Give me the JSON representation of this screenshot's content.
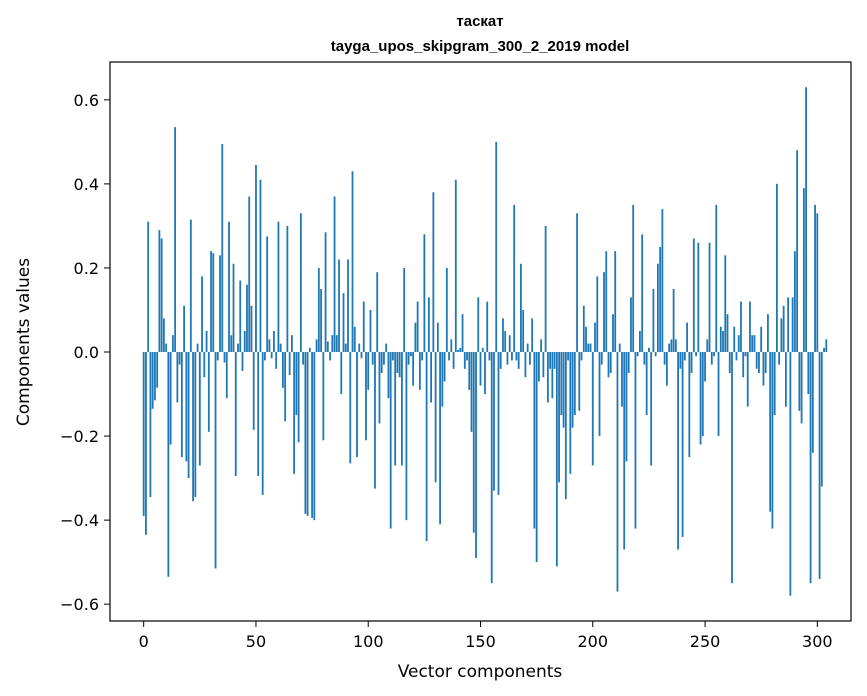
{
  "chart_data": {
    "type": "bar",
    "title": "таскат",
    "subtitle": "tayga_upos_skipgram_300_2_2019 model",
    "xlabel": "Vector components",
    "ylabel": "Components values",
    "xlim": [
      -15,
      315
    ],
    "ylim": [
      -0.64,
      0.69
    ],
    "xticks": [
      0,
      50,
      100,
      150,
      200,
      250,
      300
    ],
    "yticks": [
      -0.6,
      -0.4,
      -0.2,
      0.0,
      0.2,
      0.4,
      0.6
    ],
    "xtick_labels": [
      "0",
      "50",
      "100",
      "150",
      "200",
      "250",
      "300"
    ],
    "ytick_labels": [
      "−0.6",
      "−0.4",
      "−0.2",
      "0.0",
      "0.2",
      "0.4",
      "0.6"
    ],
    "bar_color": "#1f77b4",
    "grid": false,
    "x_start": 0,
    "values": [
      -0.39,
      -0.435,
      0.31,
      -0.345,
      -0.135,
      -0.115,
      -0.085,
      0.29,
      0.27,
      0.08,
      0.02,
      -0.535,
      -0.22,
      0.04,
      0.535,
      -0.12,
      -0.03,
      -0.25,
      0.11,
      -0.26,
      -0.3,
      0.315,
      -0.355,
      -0.345,
      0.02,
      -0.27,
      0.18,
      -0.06,
      0.05,
      -0.19,
      0.24,
      0.235,
      -0.515,
      -0.02,
      0.23,
      0.495,
      -0.025,
      -0.11,
      0.31,
      0.04,
      0.21,
      -0.295,
      0.02,
      0.17,
      -0.045,
      0.05,
      0.16,
      0.37,
      0.11,
      -0.185,
      0.445,
      -0.295,
      0.41,
      -0.34,
      -0.02,
      0.275,
      0.03,
      -0.015,
      0.05,
      -0.04,
      0.31,
      0.02,
      -0.085,
      -0.165,
      0.3,
      -0.055,
      0.04,
      -0.29,
      -0.15,
      -0.215,
      0.33,
      -0.03,
      -0.385,
      -0.39,
      0.01,
      -0.395,
      -0.4,
      0.03,
      0.2,
      0.15,
      -0.21,
      0.285,
      0.025,
      -0.02,
      0.04,
      0.37,
      0.04,
      0.22,
      -0.1,
      0.14,
      0.02,
      0.22,
      -0.265,
      0.43,
      0.06,
      -0.25,
      0.02,
      -0.015,
      0.12,
      -0.21,
      -0.09,
      0.1,
      -0.03,
      -0.325,
      0.19,
      -0.17,
      -0.05,
      -0.03,
      0.02,
      -0.11,
      -0.42,
      -0.02,
      -0.27,
      -0.05,
      -0.06,
      -0.27,
      0.2,
      -0.4,
      -0.03,
      -0.01,
      -0.08,
      0.07,
      0.12,
      -0.09,
      -0.02,
      0.28,
      -0.45,
      0.13,
      -0.12,
      0.38,
      -0.31,
      0.07,
      -0.41,
      -0.13,
      -0.07,
      0.2,
      -0.02,
      0.03,
      -0.04,
      0.41,
      0.005,
      0.01,
      0.09,
      -0.04,
      -0.02,
      -0.09,
      -0.19,
      -0.43,
      -0.49,
      0.13,
      -0.08,
      0.01,
      -0.1,
      0.12,
      -0.02,
      -0.55,
      -0.33,
      0.5,
      -0.34,
      -0.04,
      0.08,
      0.05,
      -0.03,
      0.04,
      -0.02,
      0.35,
      -0.02,
      -0.04,
      0.21,
      0.1,
      -0.06,
      0.02,
      -0.03,
      0.08,
      -0.42,
      -0.5,
      -0.07,
      0.03,
      -0.06,
      0.3,
      -0.12,
      -0.04,
      -0.11,
      -0.04,
      -0.51,
      -0.31,
      -0.15,
      -0.18,
      -0.35,
      -0.02,
      -0.29,
      -0.18,
      -0.15,
      0.33,
      -0.14,
      -0.02,
      0.11,
      0.06,
      0.02,
      0.02,
      -0.27,
      0.07,
      0.18,
      -0.2,
      -0.03,
      0.19,
      0.24,
      -0.06,
      -0.05,
      0.09,
      0.24,
      -0.57,
      0.02,
      -0.13,
      -0.47,
      -0.26,
      -0.05,
      0.13,
      0.35,
      -0.42,
      -0.01,
      0.05,
      0.28,
      -0.03,
      -0.15,
      0.01,
      -0.27,
      0.15,
      -0.01,
      0.21,
      0.25,
      0.34,
      -0.03,
      -0.08,
      0.02,
      0.03,
      0.15,
      0.03,
      -0.47,
      -0.04,
      -0.44,
      -0.02,
      0.07,
      -0.25,
      -0.05,
      0.27,
      -0.01,
      0.26,
      -0.22,
      -0.2,
      -0.07,
      0.03,
      0.26,
      -0.03,
      -0.01,
      0.35,
      -0.2,
      0.06,
      0.05,
      0.23,
      0.09,
      -0.05,
      -0.55,
      0.06,
      -0.02,
      0.04,
      0.12,
      -0.06,
      -0.01,
      -0.13,
      0.12,
      0.04,
      0.04,
      -0.04,
      -0.05,
      0.06,
      -0.08,
      -0.05,
      0.09,
      -0.38,
      -0.42,
      -0.15,
      0.4,
      -0.03,
      0.08,
      0.11,
      -0.13,
      0.13,
      -0.58,
      0.13,
      0.24,
      0.48,
      -0.14,
      -0.17,
      0.39,
      0.63,
      -0.1,
      -0.55,
      -0.24,
      0.35,
      0.33,
      -0.54,
      -0.32,
      0.01,
      0.03
    ]
  }
}
